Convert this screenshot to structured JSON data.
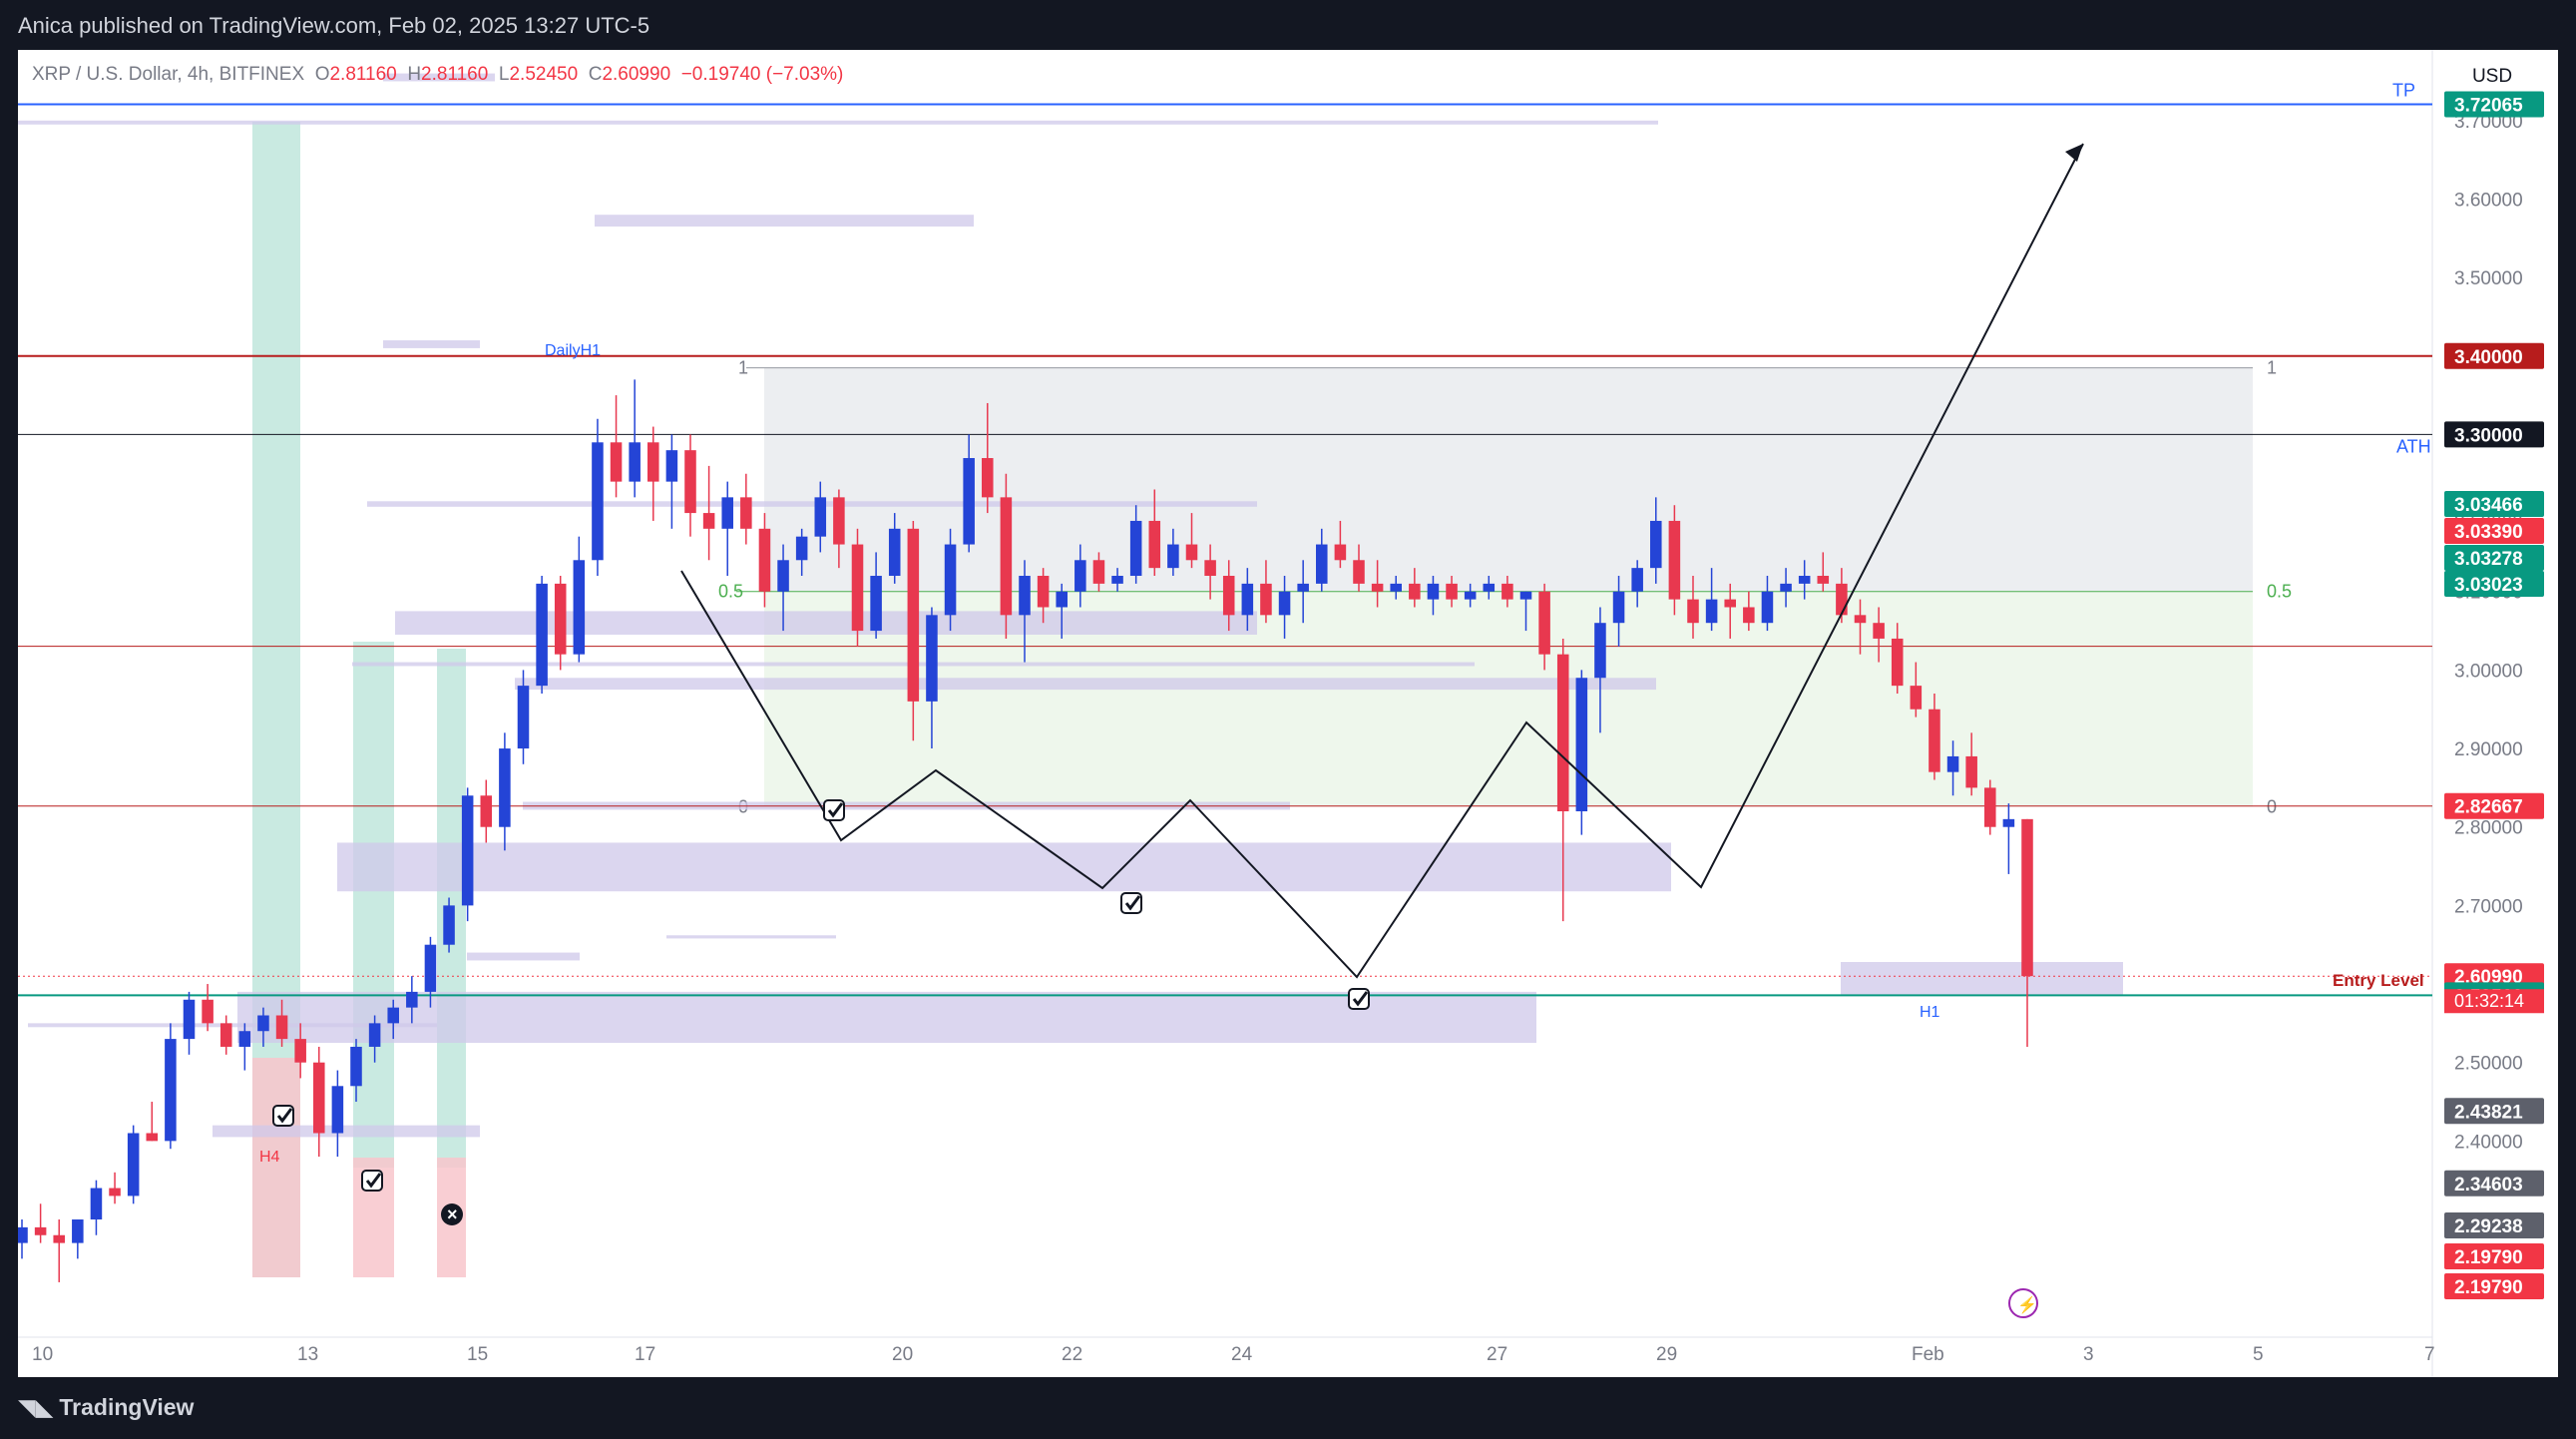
{
  "header": {
    "publish_info": "Anica published on TradingView.com, Feb 02, 2025 13:27 UTC-5",
    "brand": "TradingView"
  },
  "legend": {
    "symbol": "XRP / U.S. Dollar, 4h, BITFINEX",
    "o_label": "O",
    "o_value": "2.81160",
    "h_label": "H",
    "h_value": "2.81160",
    "l_label": "L",
    "l_value": "2.52450",
    "c_label": "C",
    "c_value": "2.60990",
    "change": "−0.19740 (−7.03%)"
  },
  "currency": "USD",
  "colors": {
    "up": "#2444d6",
    "down": "#e8384f",
    "background": "#ffffff",
    "zone": "#cfc8ea",
    "green_zone": "#bfe6dc",
    "red_zone": "#f8c6cb",
    "fib_green": "#eef7ec",
    "fib_gray": "#eceef1",
    "red_line": "#b71c1c",
    "teal_line": "#089981",
    "tp_line": "#2962ff"
  },
  "chart_data": {
    "type": "candlestick",
    "symbol": "XRPUSD",
    "timeframe": "4h",
    "ylim": [
      2.15,
      3.79
    ],
    "x_tick_labels": [
      "10",
      "13",
      "15",
      "17",
      "20",
      "22",
      "24",
      "27",
      "29",
      "Feb",
      "3",
      "5",
      "7"
    ],
    "y_tick_labels": [
      "3.70000",
      "3.60000",
      "3.50000",
      "3.40000",
      "3.30000",
      "3.20000",
      "3.10000",
      "3.00000",
      "2.90000",
      "2.80000",
      "2.70000",
      "2.60000",
      "2.50000",
      "2.40000",
      "2.30000"
    ],
    "price_tags": [
      {
        "value": 3.72065,
        "text": "3.72065",
        "color": "#089981"
      },
      {
        "value": 3.4,
        "text": "3.40000",
        "color": "#b71c1c"
      },
      {
        "value": 3.3,
        "text": "3.30000",
        "color": "#131722"
      },
      {
        "value": 3.03466,
        "text": "3.03466",
        "color": "#089981"
      },
      {
        "value": 3.0339,
        "text": "3.03390",
        "color": "#f23645"
      },
      {
        "value": 3.03278,
        "text": "3.03278",
        "color": "#089981"
      },
      {
        "value": 3.03023,
        "text": "3.03023",
        "color": "#089981"
      },
      {
        "value": 2.82667,
        "text": "2.82667",
        "color": "#f23645"
      },
      {
        "value": 2.6099,
        "text": "2.60990",
        "color": "#f23645"
      },
      {
        "value": 2.5856,
        "text": "2.58560",
        "color": "#089981"
      },
      {
        "value": 2.43821,
        "text": "2.43821",
        "color": "#5d606b"
      },
      {
        "value": 2.34603,
        "text": "2.34603",
        "color": "#5d606b"
      },
      {
        "value": 2.29238,
        "text": "2.29238",
        "color": "#5d606b"
      },
      {
        "value": 2.1979,
        "text": "2.19790",
        "color": "#f23645"
      },
      {
        "value": 2.1979,
        "text": "2.19790",
        "color": "#f23645"
      }
    ],
    "countdown": "01:32:14",
    "labels": {
      "tp": "TP",
      "ath": "ATH",
      "entry": "Entry Level",
      "daily_h1": "DailyH1",
      "h4": "H4",
      "h1": "H1",
      "fib_1": "1",
      "fib_05": "0.5",
      "fib_0": "0"
    },
    "horizontal_levels": [
      {
        "value": 3.72065,
        "role": "TP"
      },
      {
        "value": 3.4,
        "role": "resistance"
      },
      {
        "value": 3.3,
        "role": "ATH"
      },
      {
        "value": 3.03023,
        "role": "level"
      },
      {
        "value": 2.82667,
        "role": "level"
      },
      {
        "value": 2.5856,
        "role": "support"
      },
      {
        "value": 2.6099,
        "role": "entry"
      }
    ],
    "fib_retracement": {
      "level_1": 3.385,
      "level_05": 3.1,
      "level_0": 2.826
    },
    "candles": [
      [
        2.27,
        2.3,
        2.25,
        2.29
      ],
      [
        2.29,
        2.32,
        2.27,
        2.28
      ],
      [
        2.28,
        2.3,
        2.22,
        2.27
      ],
      [
        2.27,
        2.3,
        2.25,
        2.3
      ],
      [
        2.3,
        2.35,
        2.28,
        2.34
      ],
      [
        2.34,
        2.36,
        2.32,
        2.33
      ],
      [
        2.33,
        2.42,
        2.32,
        2.41
      ],
      [
        2.41,
        2.45,
        2.4,
        2.4
      ],
      [
        2.4,
        2.55,
        2.39,
        2.53
      ],
      [
        2.53,
        2.59,
        2.51,
        2.58
      ],
      [
        2.58,
        2.6,
        2.54,
        2.55
      ],
      [
        2.55,
        2.56,
        2.51,
        2.52
      ],
      [
        2.52,
        2.55,
        2.49,
        2.54
      ],
      [
        2.54,
        2.57,
        2.52,
        2.56
      ],
      [
        2.56,
        2.58,
        2.52,
        2.53
      ],
      [
        2.53,
        2.55,
        2.48,
        2.5
      ],
      [
        2.5,
        2.52,
        2.38,
        2.41
      ],
      [
        2.41,
        2.49,
        2.38,
        2.47
      ],
      [
        2.47,
        2.53,
        2.45,
        2.52
      ],
      [
        2.52,
        2.56,
        2.5,
        2.55
      ],
      [
        2.55,
        2.58,
        2.53,
        2.57
      ],
      [
        2.57,
        2.61,
        2.55,
        2.59
      ],
      [
        2.59,
        2.66,
        2.57,
        2.65
      ],
      [
        2.65,
        2.71,
        2.64,
        2.7
      ],
      [
        2.7,
        2.85,
        2.68,
        2.84
      ],
      [
        2.84,
        2.86,
        2.78,
        2.8
      ],
      [
        2.8,
        2.92,
        2.77,
        2.9
      ],
      [
        2.9,
        3.0,
        2.88,
        2.98
      ],
      [
        2.98,
        3.12,
        2.97,
        3.11
      ],
      [
        3.11,
        3.12,
        3.0,
        3.02
      ],
      [
        3.02,
        3.17,
        3.01,
        3.14
      ],
      [
        3.14,
        3.32,
        3.12,
        3.29
      ],
      [
        3.29,
        3.35,
        3.22,
        3.24
      ],
      [
        3.24,
        3.37,
        3.22,
        3.29
      ],
      [
        3.29,
        3.31,
        3.19,
        3.24
      ],
      [
        3.24,
        3.3,
        3.18,
        3.28
      ],
      [
        3.28,
        3.3,
        3.17,
        3.2
      ],
      [
        3.2,
        3.26,
        3.14,
        3.18
      ],
      [
        3.18,
        3.24,
        3.12,
        3.22
      ],
      [
        3.22,
        3.25,
        3.16,
        3.18
      ],
      [
        3.18,
        3.2,
        3.08,
        3.1
      ],
      [
        3.1,
        3.16,
        3.05,
        3.14
      ],
      [
        3.14,
        3.18,
        3.12,
        3.17
      ],
      [
        3.17,
        3.24,
        3.15,
        3.22
      ],
      [
        3.22,
        3.23,
        3.13,
        3.16
      ],
      [
        3.16,
        3.18,
        3.03,
        3.05
      ],
      [
        3.05,
        3.15,
        3.04,
        3.12
      ],
      [
        3.12,
        3.2,
        3.11,
        3.18
      ],
      [
        3.18,
        3.19,
        2.91,
        2.96
      ],
      [
        2.96,
        3.08,
        2.9,
        3.07
      ],
      [
        3.07,
        3.18,
        3.05,
        3.16
      ],
      [
        3.16,
        3.3,
        3.15,
        3.27
      ],
      [
        3.27,
        3.34,
        3.2,
        3.22
      ],
      [
        3.22,
        3.25,
        3.04,
        3.07
      ],
      [
        3.07,
        3.14,
        3.01,
        3.12
      ],
      [
        3.12,
        3.13,
        3.06,
        3.08
      ],
      [
        3.08,
        3.11,
        3.04,
        3.1
      ],
      [
        3.1,
        3.16,
        3.08,
        3.14
      ],
      [
        3.14,
        3.15,
        3.1,
        3.11
      ],
      [
        3.11,
        3.13,
        3.1,
        3.12
      ],
      [
        3.12,
        3.21,
        3.11,
        3.19
      ],
      [
        3.19,
        3.23,
        3.12,
        3.13
      ],
      [
        3.13,
        3.18,
        3.12,
        3.16
      ],
      [
        3.16,
        3.2,
        3.13,
        3.14
      ],
      [
        3.14,
        3.16,
        3.09,
        3.12
      ],
      [
        3.12,
        3.14,
        3.05,
        3.07
      ],
      [
        3.07,
        3.13,
        3.05,
        3.11
      ],
      [
        3.11,
        3.14,
        3.06,
        3.07
      ],
      [
        3.07,
        3.12,
        3.04,
        3.1
      ],
      [
        3.1,
        3.14,
        3.06,
        3.11
      ],
      [
        3.11,
        3.18,
        3.1,
        3.16
      ],
      [
        3.16,
        3.19,
        3.13,
        3.14
      ],
      [
        3.14,
        3.16,
        3.1,
        3.11
      ],
      [
        3.11,
        3.14,
        3.08,
        3.1
      ],
      [
        3.1,
        3.12,
        3.09,
        3.11
      ],
      [
        3.11,
        3.13,
        3.08,
        3.09
      ],
      [
        3.09,
        3.12,
        3.07,
        3.11
      ],
      [
        3.11,
        3.12,
        3.08,
        3.09
      ],
      [
        3.09,
        3.11,
        3.08,
        3.1
      ],
      [
        3.1,
        3.12,
        3.09,
        3.11
      ],
      [
        3.11,
        3.12,
        3.08,
        3.09
      ],
      [
        3.09,
        3.1,
        3.05,
        3.1
      ],
      [
        3.1,
        3.11,
        3.0,
        3.02
      ],
      [
        3.02,
        3.04,
        2.68,
        2.82
      ],
      [
        2.82,
        3.0,
        2.79,
        2.99
      ],
      [
        2.99,
        3.08,
        2.92,
        3.06
      ],
      [
        3.06,
        3.12,
        3.03,
        3.1
      ],
      [
        3.1,
        3.14,
        3.08,
        3.13
      ],
      [
        3.13,
        3.22,
        3.11,
        3.19
      ],
      [
        3.19,
        3.21,
        3.07,
        3.09
      ],
      [
        3.09,
        3.12,
        3.04,
        3.06
      ],
      [
        3.06,
        3.13,
        3.05,
        3.09
      ],
      [
        3.09,
        3.11,
        3.04,
        3.08
      ],
      [
        3.08,
        3.1,
        3.05,
        3.06
      ],
      [
        3.06,
        3.12,
        3.05,
        3.1
      ],
      [
        3.1,
        3.13,
        3.08,
        3.11
      ],
      [
        3.11,
        3.14,
        3.09,
        3.12
      ],
      [
        3.12,
        3.15,
        3.1,
        3.11
      ],
      [
        3.11,
        3.13,
        3.06,
        3.07
      ],
      [
        3.07,
        3.09,
        3.02,
        3.06
      ],
      [
        3.06,
        3.08,
        3.01,
        3.04
      ],
      [
        3.04,
        3.06,
        2.97,
        2.98
      ],
      [
        2.98,
        3.01,
        2.94,
        2.95
      ],
      [
        2.95,
        2.97,
        2.86,
        2.87
      ],
      [
        2.87,
        2.91,
        2.84,
        2.89
      ],
      [
        2.89,
        2.92,
        2.84,
        2.85
      ],
      [
        2.85,
        2.86,
        2.79,
        2.8
      ],
      [
        2.8,
        2.83,
        2.74,
        2.81
      ],
      [
        2.81,
        2.81,
        2.52,
        2.61
      ]
    ]
  }
}
